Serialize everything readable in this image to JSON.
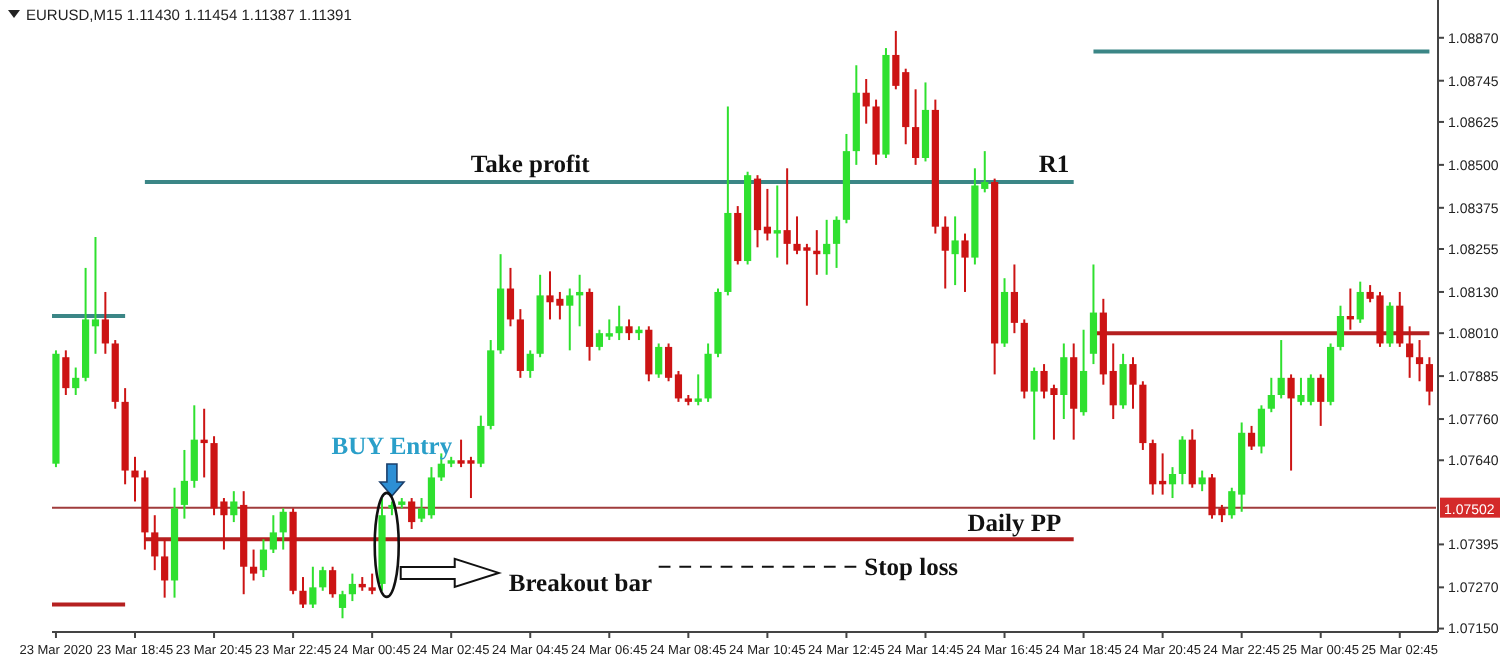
{
  "chart_data": {
    "type": "candlestick",
    "title": "EURUSD,M15 1.11430 1.11454 1.11387 1.11391",
    "x": [
      "2020-03-23T16:45",
      "2020-03-23T17:00",
      "2020-03-23T17:15",
      "2020-03-23T17:30",
      "2020-03-23T17:45",
      "2020-03-23T18:00",
      "2020-03-23T18:15",
      "2020-03-23T18:30",
      "2020-03-23T18:45",
      "2020-03-23T19:00",
      "2020-03-23T19:15",
      "2020-03-23T19:30",
      "2020-03-23T19:45",
      "2020-03-23T20:00",
      "2020-03-23T20:15",
      "2020-03-23T20:30",
      "2020-03-23T20:45",
      "2020-03-23T21:00",
      "2020-03-23T21:15",
      "2020-03-23T21:30",
      "2020-03-23T21:45",
      "2020-03-23T22:00",
      "2020-03-23T22:15",
      "2020-03-23T22:30",
      "2020-03-23T22:45",
      "2020-03-23T23:00",
      "2020-03-23T23:15",
      "2020-03-23T23:30",
      "2020-03-23T23:45",
      "2020-03-24T00:00",
      "2020-03-24T00:15",
      "2020-03-24T00:30",
      "2020-03-24T00:45",
      "2020-03-24T01:00",
      "2020-03-24T01:15",
      "2020-03-24T01:30",
      "2020-03-24T01:45",
      "2020-03-24T02:00",
      "2020-03-24T02:15",
      "2020-03-24T02:30",
      "2020-03-24T02:45",
      "2020-03-24T03:00",
      "2020-03-24T03:15",
      "2020-03-24T03:30",
      "2020-03-24T03:45",
      "2020-03-24T04:00",
      "2020-03-24T04:15",
      "2020-03-24T04:30",
      "2020-03-24T04:45",
      "2020-03-24T05:00",
      "2020-03-24T05:15",
      "2020-03-24T05:30",
      "2020-03-24T05:45",
      "2020-03-24T06:00",
      "2020-03-24T06:15",
      "2020-03-24T06:30",
      "2020-03-24T06:45",
      "2020-03-24T07:00",
      "2020-03-24T07:15",
      "2020-03-24T07:30",
      "2020-03-24T07:45",
      "2020-03-24T08:00",
      "2020-03-24T08:15",
      "2020-03-24T08:30",
      "2020-03-24T08:45",
      "2020-03-24T09:00",
      "2020-03-24T09:15",
      "2020-03-24T09:30",
      "2020-03-24T09:45",
      "2020-03-24T10:00",
      "2020-03-24T10:15",
      "2020-03-24T10:30",
      "2020-03-24T10:45",
      "2020-03-24T11:00",
      "2020-03-24T11:15",
      "2020-03-24T11:30",
      "2020-03-24T11:45",
      "2020-03-24T12:00",
      "2020-03-24T12:15",
      "2020-03-24T12:30",
      "2020-03-24T12:45",
      "2020-03-24T13:00",
      "2020-03-24T13:15",
      "2020-03-24T13:30",
      "2020-03-24T13:45",
      "2020-03-24T14:00",
      "2020-03-24T14:15",
      "2020-03-24T14:30",
      "2020-03-24T14:45",
      "2020-03-24T15:00",
      "2020-03-24T15:15",
      "2020-03-24T15:30",
      "2020-03-24T15:45",
      "2020-03-24T16:00",
      "2020-03-24T16:15",
      "2020-03-24T16:30",
      "2020-03-24T16:45",
      "2020-03-24T17:00",
      "2020-03-24T17:15",
      "2020-03-24T17:30",
      "2020-03-24T17:45",
      "2020-03-24T18:00",
      "2020-03-24T18:15",
      "2020-03-24T18:30",
      "2020-03-24T18:45",
      "2020-03-24T19:00",
      "2020-03-24T19:15",
      "2020-03-24T19:30",
      "2020-03-24T19:45",
      "2020-03-24T20:00",
      "2020-03-24T20:15",
      "2020-03-24T20:30",
      "2020-03-24T20:45",
      "2020-03-24T21:00",
      "2020-03-24T21:15",
      "2020-03-24T21:30",
      "2020-03-24T21:45",
      "2020-03-24T22:00",
      "2020-03-24T22:15",
      "2020-03-24T22:30",
      "2020-03-24T22:45",
      "2020-03-24T23:00",
      "2020-03-24T23:15",
      "2020-03-24T23:30",
      "2020-03-24T23:45",
      "2020-03-25T00:00",
      "2020-03-25T00:15",
      "2020-03-25T00:30",
      "2020-03-25T00:45",
      "2020-03-25T01:00",
      "2020-03-25T01:15",
      "2020-03-25T01:30",
      "2020-03-25T01:45",
      "2020-03-25T02:00",
      "2020-03-25T02:15",
      "2020-03-25T02:30",
      "2020-03-25T02:45",
      "2020-03-25T03:00",
      "2020-03-25T03:15",
      "2020-03-25T03:30"
    ],
    "ohlc": [
      [
        1.0763,
        1.0796,
        1.0762,
        1.0795
      ],
      [
        1.0794,
        1.0796,
        1.0783,
        1.0785
      ],
      [
        1.0785,
        1.0791,
        1.0783,
        1.0788
      ],
      [
        1.0788,
        1.082,
        1.0787,
        1.0805
      ],
      [
        1.0803,
        1.0829,
        1.0795,
        1.0805
      ],
      [
        1.0805,
        1.0813,
        1.0795,
        1.0798
      ],
      [
        1.0798,
        1.0799,
        1.0779,
        1.0781
      ],
      [
        1.0781,
        1.0785,
        1.0757,
        1.0761
      ],
      [
        1.0761,
        1.0765,
        1.0752,
        1.0759
      ],
      [
        1.0759,
        1.0761,
        1.0738,
        1.0743
      ],
      [
        1.0743,
        1.0748,
        1.0732,
        1.0736
      ],
      [
        1.0736,
        1.0741,
        1.0724,
        1.0729
      ],
      [
        1.0729,
        1.0756,
        1.0724,
        1.075
      ],
      [
        1.0751,
        1.0767,
        1.0747,
        1.0758
      ],
      [
        1.0758,
        1.078,
        1.0756,
        1.077
      ],
      [
        1.077,
        1.0779,
        1.0759,
        1.0769
      ],
      [
        1.0769,
        1.0771,
        1.0748,
        1.075
      ],
      [
        1.0752,
        1.0753,
        1.0738,
        1.0748
      ],
      [
        1.0748,
        1.0755,
        1.0746,
        1.0752
      ],
      [
        1.0751,
        1.0755,
        1.0725,
        1.0733
      ],
      [
        1.0733,
        1.0738,
        1.0729,
        1.0731
      ],
      [
        1.0732,
        1.0741,
        1.073,
        1.0738
      ],
      [
        1.0738,
        1.0748,
        1.0737,
        1.0743
      ],
      [
        1.0743,
        1.075,
        1.0738,
        1.0749
      ],
      [
        1.0749,
        1.075,
        1.0725,
        1.0726
      ],
      [
        1.0726,
        1.073,
        1.0721,
        1.0722
      ],
      [
        1.0722,
        1.0733,
        1.0721,
        1.0727
      ],
      [
        1.0727,
        1.0733,
        1.0726,
        1.0732
      ],
      [
        1.0732,
        1.0733,
        1.0724,
        1.0725
      ],
      [
        1.0721,
        1.0726,
        1.0718,
        1.0725
      ],
      [
        1.0725,
        1.0731,
        1.0723,
        1.0728
      ],
      [
        1.0728,
        1.073,
        1.0726,
        1.0727
      ],
      [
        1.0727,
        1.0731,
        1.0725,
        1.0726
      ],
      [
        1.0728,
        1.0753,
        1.0726,
        1.0748
      ],
      [
        1.075,
        1.0752,
        1.0748,
        1.0751
      ],
      [
        1.0751,
        1.0753,
        1.075,
        1.0752
      ],
      [
        1.0752,
        1.0753,
        1.0744,
        1.0746
      ],
      [
        1.0747,
        1.0753,
        1.0746,
        1.075
      ],
      [
        1.0748,
        1.0762,
        1.0747,
        1.0759
      ],
      [
        1.0759,
        1.0766,
        1.0758,
        1.0763
      ],
      [
        1.0763,
        1.0765,
        1.0762,
        1.0764
      ],
      [
        1.0764,
        1.077,
        1.0762,
        1.0763
      ],
      [
        1.0764,
        1.0765,
        1.0753,
        1.0763
      ],
      [
        1.0763,
        1.0777,
        1.0762,
        1.0774
      ],
      [
        1.0774,
        1.0799,
        1.0773,
        1.0796
      ],
      [
        1.0796,
        1.0824,
        1.0795,
        1.0814
      ],
      [
        1.0814,
        1.082,
        1.0803,
        1.0805
      ],
      [
        1.0805,
        1.0808,
        1.0788,
        1.079
      ],
      [
        1.079,
        1.0796,
        1.0788,
        1.0795
      ],
      [
        1.0795,
        1.0818,
        1.0794,
        1.0812
      ],
      [
        1.0812,
        1.0819,
        1.0805,
        1.081
      ],
      [
        1.0811,
        1.0813,
        1.0805,
        1.0809
      ],
      [
        1.0809,
        1.0814,
        1.0796,
        1.0812
      ],
      [
        1.0812,
        1.0818,
        1.0803,
        1.0813
      ],
      [
        1.0813,
        1.0814,
        1.0793,
        1.0797
      ],
      [
        1.0797,
        1.0802,
        1.0796,
        1.0801
      ],
      [
        1.08,
        1.0805,
        1.0799,
        1.0801
      ],
      [
        1.0801,
        1.0809,
        1.0799,
        1.0803
      ],
      [
        1.0803,
        1.0805,
        1.0799,
        1.0801
      ],
      [
        1.0801,
        1.0803,
        1.0799,
        1.0802
      ],
      [
        1.0802,
        1.0803,
        1.0787,
        1.0789
      ],
      [
        1.0789,
        1.0798,
        1.0788,
        1.0797
      ],
      [
        1.0797,
        1.0798,
        1.0787,
        1.0788
      ],
      [
        1.0789,
        1.079,
        1.0781,
        1.0782
      ],
      [
        1.0782,
        1.0783,
        1.078,
        1.0781
      ],
      [
        1.0781,
        1.0789,
        1.078,
        1.0782
      ],
      [
        1.0782,
        1.0798,
        1.0781,
        1.0795
      ],
      [
        1.0795,
        1.0814,
        1.0794,
        1.0813
      ],
      [
        1.0813,
        1.0867,
        1.0812,
        1.0836
      ],
      [
        1.0836,
        1.0838,
        1.0821,
        1.0822
      ],
      [
        1.0822,
        1.0848,
        1.0821,
        1.0847
      ],
      [
        1.0846,
        1.0847,
        1.0826,
        1.0831
      ],
      [
        1.0832,
        1.0843,
        1.0828,
        1.083
      ],
      [
        1.083,
        1.0844,
        1.0823,
        1.0831
      ],
      [
        1.0831,
        1.0849,
        1.0821,
        1.0827
      ],
      [
        1.0827,
        1.0835,
        1.0824,
        1.0825
      ],
      [
        1.0826,
        1.0827,
        1.0809,
        1.0825
      ],
      [
        1.0825,
        1.0831,
        1.0818,
        1.0824
      ],
      [
        1.0824,
        1.0834,
        1.0818,
        1.0827
      ],
      [
        1.0827,
        1.0835,
        1.082,
        1.0834
      ],
      [
        1.0834,
        1.0859,
        1.0833,
        1.0854
      ],
      [
        1.0854,
        1.0879,
        1.085,
        1.0871
      ],
      [
        1.0871,
        1.0875,
        1.0862,
        1.0867
      ],
      [
        1.0867,
        1.0869,
        1.085,
        1.0853
      ],
      [
        1.0853,
        1.0884,
        1.0852,
        1.0882
      ],
      [
        1.0882,
        1.0889,
        1.0872,
        1.0873
      ],
      [
        1.0877,
        1.0878,
        1.0856,
        1.0861
      ],
      [
        1.0861,
        1.0872,
        1.085,
        1.0852
      ],
      [
        1.0852,
        1.0874,
        1.0851,
        1.0866
      ],
      [
        1.0866,
        1.0869,
        1.083,
        1.0832
      ],
      [
        1.0832,
        1.0835,
        1.0814,
        1.0825
      ],
      [
        1.0824,
        1.0835,
        1.0815,
        1.0828
      ],
      [
        1.0828,
        1.083,
        1.0813,
        1.0823
      ],
      [
        1.0823,
        1.0849,
        1.0821,
        1.0844
      ],
      [
        1.0843,
        1.0854,
        1.0842,
        1.0845
      ],
      [
        1.0845,
        1.0846,
        1.0789,
        1.0798
      ],
      [
        1.0798,
        1.0817,
        1.0797,
        1.0813
      ],
      [
        1.0813,
        1.0821,
        1.0801,
        1.0804
      ],
      [
        1.0804,
        1.0805,
        1.0782,
        1.0784
      ],
      [
        1.0784,
        1.0791,
        1.077,
        1.079
      ],
      [
        1.079,
        1.0792,
        1.0782,
        1.0784
      ],
      [
        1.0785,
        1.0786,
        1.077,
        1.0783
      ],
      [
        1.0783,
        1.0798,
        1.0776,
        1.0794
      ],
      [
        1.0794,
        1.0798,
        1.077,
        1.0779
      ],
      [
        1.0778,
        1.0802,
        1.0777,
        1.079
      ],
      [
        1.0795,
        1.0821,
        1.0792,
        1.0807
      ],
      [
        1.0807,
        1.0811,
        1.0786,
        1.0789
      ],
      [
        1.079,
        1.0798,
        1.0776,
        1.078
      ],
      [
        1.078,
        1.0795,
        1.0779,
        1.0792
      ],
      [
        1.0792,
        1.0794,
        1.0779,
        1.0786
      ],
      [
        1.0786,
        1.0787,
        1.0767,
        1.0769
      ],
      [
        1.0769,
        1.077,
        1.0754,
        1.0757
      ],
      [
        1.0758,
        1.0766,
        1.0754,
        1.0757
      ],
      [
        1.0757,
        1.0762,
        1.0753,
        1.076
      ],
      [
        1.076,
        1.0771,
        1.0757,
        1.077
      ],
      [
        1.077,
        1.0773,
        1.0756,
        1.0757
      ],
      [
        1.0757,
        1.0761,
        1.0755,
        1.0759
      ],
      [
        1.0759,
        1.076,
        1.0747,
        1.0748
      ],
      [
        1.075,
        1.0751,
        1.0746,
        1.0748
      ],
      [
        1.0748,
        1.0756,
        1.0747,
        1.0755
      ],
      [
        1.0754,
        1.0775,
        1.0749,
        1.0772
      ],
      [
        1.0772,
        1.0774,
        1.0767,
        1.0768
      ],
      [
        1.0768,
        1.078,
        1.0766,
        1.0779
      ],
      [
        1.0779,
        1.0788,
        1.0778,
        1.0783
      ],
      [
        1.0783,
        1.0799,
        1.0782,
        1.0788
      ],
      [
        1.0788,
        1.0789,
        1.0761,
        1.0782
      ],
      [
        1.0781,
        1.0788,
        1.078,
        1.0783
      ],
      [
        1.0781,
        1.0789,
        1.078,
        1.0788
      ],
      [
        1.0788,
        1.0789,
        1.0774,
        1.0781
      ],
      [
        1.0781,
        1.0798,
        1.078,
        1.0797
      ],
      [
        1.0797,
        1.0809,
        1.0796,
        1.0806
      ],
      [
        1.0806,
        1.0814,
        1.0802,
        1.0805
      ],
      [
        1.0805,
        1.0816,
        1.0804,
        1.0813
      ],
      [
        1.0813,
        1.0815,
        1.081,
        1.0811
      ],
      [
        1.0812,
        1.0813,
        1.0797,
        1.0798
      ],
      [
        1.0798,
        1.081,
        1.0797,
        1.0809
      ],
      [
        1.0809,
        1.0813,
        1.0797,
        1.0798
      ],
      [
        1.0798,
        1.0803,
        1.0788,
        1.0794
      ],
      [
        1.0794,
        1.0799,
        1.0787,
        1.0792
      ],
      [
        1.0792,
        1.0794,
        1.078,
        1.0784
      ]
    ],
    "colors": [
      "#2fe02f",
      "#cc1414",
      "#2fe02f",
      "#2fe02f",
      "#2fe02f",
      "#cc1414",
      "#cc1414",
      "#cc1414",
      "#cc1414",
      "#cc1414",
      "#cc1414",
      "#cc1414",
      "#2fe02f",
      "#2fe02f",
      "#2fe02f",
      "#cc1414",
      "#cc1414",
      "#cc1414",
      "#2fe02f",
      "#cc1414",
      "#cc1414",
      "#2fe02f",
      "#2fe02f",
      "#2fe02f",
      "#cc1414",
      "#cc1414",
      "#2fe02f",
      "#2fe02f",
      "#cc1414",
      "#2fe02f",
      "#2fe02f",
      "#cc1414",
      "#cc1414",
      "#2fe02f",
      "#2fe02f",
      "#2fe02f",
      "#cc1414",
      "#2fe02f",
      "#2fe02f",
      "#2fe02f",
      "#2fe02f",
      "#cc1414",
      "#cc1414",
      "#2fe02f",
      "#2fe02f",
      "#2fe02f",
      "#cc1414",
      "#cc1414",
      "#2fe02f",
      "#2fe02f",
      "#cc1414",
      "#cc1414",
      "#2fe02f",
      "#2fe02f",
      "#cc1414",
      "#2fe02f",
      "#2fe02f",
      "#2fe02f",
      "#cc1414",
      "#2fe02f",
      "#cc1414",
      "#2fe02f",
      "#cc1414",
      "#cc1414",
      "#cc1414",
      "#2fe02f",
      "#2fe02f",
      "#2fe02f",
      "#2fe02f",
      "#cc1414",
      "#2fe02f",
      "#cc1414",
      "#cc1414",
      "#2fe02f",
      "#cc1414",
      "#cc1414",
      "#cc1414",
      "#cc1414",
      "#2fe02f",
      "#2fe02f",
      "#2fe02f",
      "#2fe02f",
      "#cc1414",
      "#cc1414",
      "#2fe02f",
      "#cc1414",
      "#cc1414",
      "#cc1414",
      "#2fe02f",
      "#cc1414",
      "#cc1414",
      "#2fe02f",
      "#cc1414",
      "#2fe02f",
      "#2fe02f",
      "#cc1414",
      "#2fe02f",
      "#cc1414",
      "#cc1414",
      "#2fe02f",
      "#cc1414",
      "#cc1414",
      "#2fe02f",
      "#cc1414",
      "#2fe02f",
      "#2fe02f",
      "#cc1414",
      "#cc1414",
      "#2fe02f",
      "#cc1414",
      "#cc1414",
      "#cc1414",
      "#cc1414",
      "#2fe02f",
      "#2fe02f",
      "#cc1414",
      "#2fe02f",
      "#cc1414",
      "#cc1414",
      "#2fe02f",
      "#2fe02f",
      "#cc1414",
      "#2fe02f",
      "#2fe02f",
      "#2fe02f",
      "#cc1414",
      "#2fe02f",
      "#2fe02f",
      "#cc1414",
      "#2fe02f",
      "#2fe02f",
      "#cc1414",
      "#2fe02f",
      "#cc1414",
      "#cc1414",
      "#2fe02f",
      "#cc1414",
      "#cc1414",
      "#cc1414",
      "#cc1414"
    ],
    "series": [
      {
        "type": "line",
        "color": "#3b8686",
        "x": [
          "2020-03-23T16:39",
          "2020-03-23T18:30"
        ],
        "values": [
          1.0806,
          1.0806
        ]
      },
      {
        "type": "line",
        "color": "#b52020",
        "x": [
          "2020-03-23T16:39",
          "2020-03-23T18:30"
        ],
        "values": [
          1.0722,
          1.0722
        ]
      },
      {
        "type": "line",
        "color": "#3b8686",
        "x": [
          "2020-03-23T19:00",
          "2020-03-24T18:30"
        ],
        "values": [
          1.0845,
          1.0845
        ]
      },
      {
        "type": "line",
        "color": "#b52020",
        "x": [
          "2020-03-23T19:00",
          "2020-03-24T18:30"
        ],
        "values": [
          1.0741,
          1.0741
        ]
      },
      {
        "type": "line",
        "color": "#3b8686",
        "x": [
          "2020-03-24T19:00",
          "2020-03-25T03:30"
        ],
        "values": [
          1.0883,
          1.0883
        ]
      },
      {
        "type": "line",
        "color": "#b52020",
        "x": [
          "2020-03-24T19:00",
          "2020-03-25T03:30"
        ],
        "values": [
          1.0801,
          1.0801
        ]
      },
      {
        "type": "line",
        "color": "#111111",
        "line_style": "dashed",
        "x": [
          "2020-03-24T08:00",
          "2020-03-24T13:00"
        ],
        "values": [
          1.0733,
          1.0733
        ]
      }
    ],
    "ref_lines": [
      {
        "axis": "y",
        "value": 1.07502,
        "label": "1.07502",
        "color": "#a03c3c"
      }
    ],
    "annotations": [
      {
        "text": "Take profit",
        "x": "2020-03-24T04:45",
        "y": 1.0845
      },
      {
        "text": "R1",
        "x": "2020-03-24T18:00",
        "y": 1.0845
      },
      {
        "text": "BUY Entry",
        "x": "2020-03-24T01:15",
        "y": 1.0753
      },
      {
        "text": "Daily PP",
        "x": "2020-03-24T17:00",
        "y": 1.0741
      },
      "Breakout bar",
      {
        "text": "Stop loss",
        "x": "2020-03-24T13:00",
        "y": 1.0733
      }
    ],
    "xlim": [
      "2020-03-23T16:39",
      "2020-03-25T03:40"
    ],
    "xticks": [
      {
        "value": "2020-03-23T16:45",
        "label": "23 Mar 2020"
      },
      {
        "value": "2020-03-23T18:45",
        "label": "23 Mar 18:45"
      },
      {
        "value": "2020-03-23T20:45",
        "label": "23 Mar 20:45"
      },
      {
        "value": "2020-03-23T22:45",
        "label": "23 Mar 22:45"
      },
      {
        "value": "2020-03-24T00:45",
        "label": "24 Mar 00:45"
      },
      {
        "value": "2020-03-24T02:45",
        "label": "24 Mar 02:45"
      },
      {
        "value": "2020-03-24T04:45",
        "label": "24 Mar 04:45"
      },
      {
        "value": "2020-03-24T06:45",
        "label": "24 Mar 06:45"
      },
      {
        "value": "2020-03-24T08:45",
        "label": "24 Mar 08:45"
      },
      {
        "value": "2020-03-24T10:45",
        "label": "24 Mar 10:45"
      },
      {
        "value": "2020-03-24T12:45",
        "label": "24 Mar 12:45"
      },
      {
        "value": "2020-03-24T14:45",
        "label": "24 Mar 14:45"
      },
      {
        "value": "2020-03-24T16:45",
        "label": "24 Mar 16:45"
      },
      {
        "value": "2020-03-24T18:45",
        "label": "24 Mar 18:45"
      },
      {
        "value": "2020-03-24T20:45",
        "label": "24 Mar 20:45"
      },
      {
        "value": "2020-03-24T22:45",
        "label": "24 Mar 22:45"
      },
      {
        "value": "2020-03-25T00:45",
        "label": "25 Mar 00:45"
      },
      {
        "value": "2020-03-25T02:45",
        "label": "25 Mar 02:45"
      }
    ],
    "ylim": [
      1.0714,
      1.0898
    ],
    "yticks": [
      {
        "value": 1.0887,
        "label": "1.08870"
      },
      {
        "value": 1.08745,
        "label": "1.08745"
      },
      {
        "value": 1.08625,
        "label": "1.08625"
      },
      {
        "value": 1.085,
        "label": "1.08500"
      },
      {
        "value": 1.08375,
        "label": "1.08375"
      },
      {
        "value": 1.08255,
        "label": "1.08255"
      },
      {
        "value": 1.0813,
        "label": "1.08130"
      },
      {
        "value": 1.0801,
        "label": "1.08010"
      },
      {
        "value": 1.07885,
        "label": "1.07885"
      },
      {
        "value": 1.0776,
        "label": "1.07760"
      },
      {
        "value": 1.0764,
        "label": "1.07640"
      },
      {
        "value": 1.07395,
        "label": "1.07395"
      },
      {
        "value": 1.0727,
        "label": "1.07270"
      },
      {
        "value": 1.0715,
        "label": "1.07150"
      }
    ]
  }
}
